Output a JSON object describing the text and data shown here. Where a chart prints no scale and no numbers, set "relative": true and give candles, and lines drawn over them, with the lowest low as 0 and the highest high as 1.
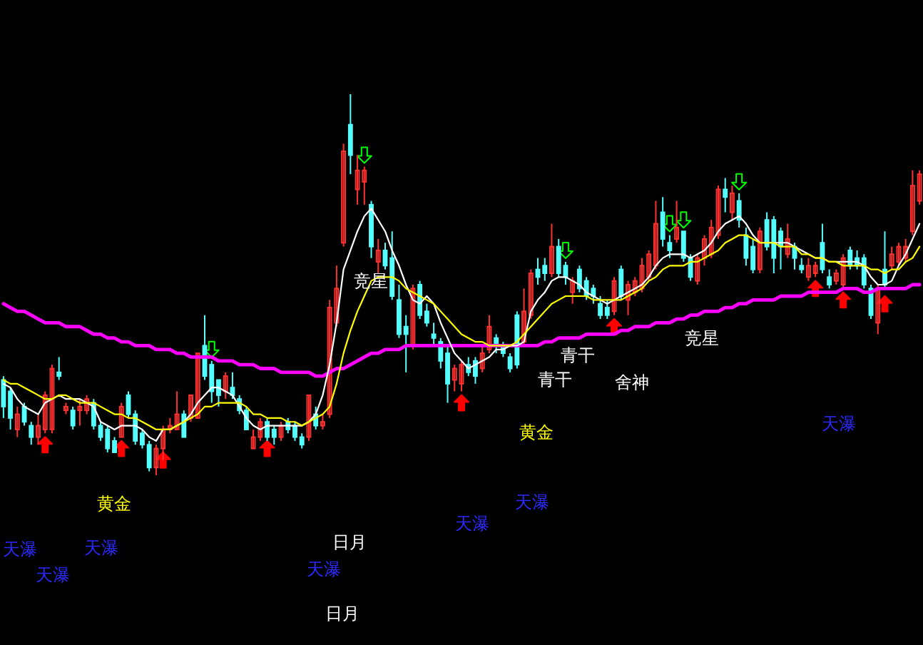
{
  "chart_data": {
    "type": "candlestick",
    "relative": true,
    "categories": [
      null,
      null,
      null,
      null,
      null,
      null,
      null,
      null,
      null,
      null,
      null,
      null,
      null,
      null,
      null,
      null,
      null,
      null,
      null,
      null,
      null,
      null,
      null,
      null,
      null,
      null,
      null,
      null,
      null,
      null,
      null,
      null,
      null,
      null,
      null,
      null,
      null,
      null,
      null,
      null,
      null,
      null,
      null,
      null,
      null,
      null,
      null,
      null,
      null,
      null,
      null,
      null,
      null,
      null,
      null,
      null,
      null,
      null,
      null,
      null,
      null,
      null,
      null,
      null,
      null,
      null,
      null,
      null,
      null,
      null,
      null,
      null,
      null,
      null,
      null,
      null,
      null,
      null,
      null,
      null,
      null,
      null,
      null,
      null,
      null,
      null,
      null,
      null,
      null,
      null,
      null,
      null,
      null,
      null,
      null,
      null,
      null,
      null,
      null,
      null,
      null,
      null,
      null,
      null,
      null,
      null,
      null,
      null,
      null,
      null,
      null,
      null,
      null,
      null,
      null,
      null,
      null,
      null,
      null,
      null,
      null,
      null,
      null,
      null,
      null,
      null,
      null,
      null,
      null,
      null,
      null,
      null,
      null
    ],
    "ohlc": [
      [
        0.25,
        0.26,
        0.15,
        0.18
      ],
      [
        0.22,
        0.23,
        0.12,
        0.15
      ],
      [
        0.12,
        0.18,
        0.1,
        0.16
      ],
      [
        0.18,
        0.19,
        0.13,
        0.14
      ],
      [
        0.13,
        0.14,
        0.08,
        0.1
      ],
      [
        0.1,
        0.16,
        0.08,
        0.13
      ],
      [
        0.12,
        0.22,
        0.11,
        0.21
      ],
      [
        0.12,
        0.29,
        0.11,
        0.28
      ],
      [
        0.27,
        0.31,
        0.25,
        0.26
      ],
      [
        0.17,
        0.19,
        0.16,
        0.18
      ],
      [
        0.17,
        0.18,
        0.12,
        0.13
      ],
      [
        0.17,
        0.2,
        0.13,
        0.18
      ],
      [
        0.17,
        0.21,
        0.16,
        0.2
      ],
      [
        0.19,
        0.2,
        0.12,
        0.13
      ],
      [
        0.13,
        0.14,
        0.09,
        0.1
      ],
      [
        0.12,
        0.13,
        0.06,
        0.07
      ],
      [
        0.09,
        0.1,
        0.06,
        0.06
      ],
      [
        0.1,
        0.19,
        0.1,
        0.18
      ],
      [
        0.21,
        0.22,
        0.15,
        0.16
      ],
      [
        0.16,
        0.17,
        0.08,
        0.09
      ],
      [
        0.11,
        0.12,
        0.07,
        0.08
      ],
      [
        0.08,
        0.09,
        0.01,
        0.02
      ],
      [
        0.02,
        0.08,
        0.0,
        0.07
      ],
      [
        0.07,
        0.13,
        0.04,
        0.12
      ],
      [
        0.12,
        0.15,
        0.11,
        0.13
      ],
      [
        0.12,
        0.22,
        0.12,
        0.16
      ],
      [
        0.16,
        0.17,
        0.1,
        0.1
      ],
      [
        0.15,
        0.21,
        0.14,
        0.21
      ],
      [
        0.15,
        0.32,
        0.15,
        0.32
      ],
      [
        0.34,
        0.42,
        0.25,
        0.26
      ],
      [
        0.29,
        0.3,
        0.19,
        0.22
      ],
      [
        0.25,
        0.25,
        0.18,
        0.21
      ],
      [
        0.22,
        0.27,
        0.2,
        0.26
      ],
      [
        0.23,
        0.27,
        0.2,
        0.21
      ],
      [
        0.2,
        0.21,
        0.16,
        0.17
      ],
      [
        0.17,
        0.18,
        0.12,
        0.12
      ],
      [
        0.07,
        0.12,
        0.07,
        0.1
      ],
      [
        0.1,
        0.15,
        0.09,
        0.14
      ],
      [
        0.14,
        0.15,
        0.09,
        0.1
      ],
      [
        0.12,
        0.13,
        0.08,
        0.1
      ],
      [
        0.1,
        0.14,
        0.09,
        0.13
      ],
      [
        0.14,
        0.15,
        0.11,
        0.12
      ],
      [
        0.13,
        0.14,
        0.09,
        0.1
      ],
      [
        0.1,
        0.11,
        0.07,
        0.08
      ],
      [
        0.1,
        0.21,
        0.09,
        0.21
      ],
      [
        0.16,
        0.18,
        0.12,
        0.13
      ],
      [
        0.13,
        0.16,
        0.12,
        0.14
      ],
      [
        0.16,
        0.46,
        0.15,
        0.44
      ],
      [
        0.4,
        0.55,
        0.39,
        0.49
      ],
      [
        0.61,
        0.87,
        0.6,
        0.85
      ],
      [
        0.92,
        1.0,
        0.79,
        0.84
      ],
      [
        0.75,
        0.84,
        0.71,
        0.8
      ],
      [
        0.77,
        0.81,
        0.71,
        0.8
      ],
      [
        0.71,
        0.72,
        0.57,
        0.6
      ],
      [
        0.56,
        0.62,
        0.53,
        0.59
      ],
      [
        0.59,
        0.61,
        0.54,
        0.55
      ],
      [
        0.57,
        0.64,
        0.46,
        0.47
      ],
      [
        0.46,
        0.5,
        0.36,
        0.37
      ],
      [
        0.39,
        0.42,
        0.27,
        0.37
      ],
      [
        0.34,
        0.5,
        0.33,
        0.49
      ],
      [
        0.5,
        0.51,
        0.41,
        0.42
      ],
      [
        0.43,
        0.45,
        0.39,
        0.4
      ],
      [
        0.37,
        0.4,
        0.34,
        0.36
      ],
      [
        0.35,
        0.36,
        0.28,
        0.3
      ],
      [
        0.32,
        0.34,
        0.19,
        0.24
      ],
      [
        0.25,
        0.29,
        0.22,
        0.28
      ],
      [
        0.24,
        0.3,
        0.22,
        0.29
      ],
      [
        0.29,
        0.31,
        0.26,
        0.27
      ],
      [
        0.3,
        0.31,
        0.24,
        0.26
      ],
      [
        0.28,
        0.34,
        0.27,
        0.32
      ],
      [
        0.33,
        0.42,
        0.32,
        0.39
      ],
      [
        0.36,
        0.37,
        0.32,
        0.34
      ],
      [
        0.34,
        0.35,
        0.31,
        0.32
      ],
      [
        0.31,
        0.32,
        0.27,
        0.28
      ],
      [
        0.42,
        0.43,
        0.28,
        0.29
      ],
      [
        0.35,
        0.49,
        0.34,
        0.43
      ],
      [
        0.42,
        0.54,
        0.41,
        0.53
      ],
      [
        0.54,
        0.57,
        0.5,
        0.52
      ],
      [
        0.55,
        0.57,
        0.51,
        0.53
      ],
      [
        0.53,
        0.66,
        0.52,
        0.6
      ],
      [
        0.6,
        0.62,
        0.52,
        0.53
      ],
      [
        0.55,
        0.56,
        0.5,
        0.52
      ],
      [
        0.48,
        0.52,
        0.45,
        0.51
      ],
      [
        0.54,
        0.55,
        0.48,
        0.49
      ],
      [
        0.51,
        0.52,
        0.46,
        0.47
      ],
      [
        0.49,
        0.5,
        0.45,
        0.47
      ],
      [
        0.45,
        0.47,
        0.41,
        0.42
      ],
      [
        0.44,
        0.46,
        0.41,
        0.42
      ],
      [
        0.43,
        0.52,
        0.42,
        0.51
      ],
      [
        0.54,
        0.55,
        0.46,
        0.47
      ],
      [
        0.46,
        0.51,
        0.42,
        0.5
      ],
      [
        0.48,
        0.52,
        0.47,
        0.51
      ],
      [
        0.49,
        0.57,
        0.48,
        0.55
      ],
      [
        0.52,
        0.59,
        0.51,
        0.58
      ],
      [
        0.55,
        0.72,
        0.54,
        0.66
      ],
      [
        0.69,
        0.73,
        0.6,
        0.62
      ],
      [
        0.61,
        0.63,
        0.57,
        0.59
      ],
      [
        0.62,
        0.72,
        0.61,
        0.65
      ],
      [
        0.64,
        0.64,
        0.56,
        0.57
      ],
      [
        0.57,
        0.58,
        0.51,
        0.52
      ],
      [
        0.51,
        0.58,
        0.5,
        0.57
      ],
      [
        0.57,
        0.63,
        0.55,
        0.62
      ],
      [
        0.58,
        0.67,
        0.57,
        0.65
      ],
      [
        0.63,
        0.76,
        0.62,
        0.75
      ],
      [
        0.75,
        0.78,
        0.69,
        0.73
      ],
      [
        0.69,
        0.76,
        0.67,
        0.74
      ],
      [
        0.72,
        0.74,
        0.65,
        0.67
      ],
      [
        0.63,
        0.65,
        0.55,
        0.57
      ],
      [
        0.6,
        0.62,
        0.53,
        0.54
      ],
      [
        0.54,
        0.65,
        0.53,
        0.64
      ],
      [
        0.67,
        0.69,
        0.59,
        0.6
      ],
      [
        0.67,
        0.68,
        0.53,
        0.57
      ],
      [
        0.64,
        0.65,
        0.54,
        0.6
      ],
      [
        0.58,
        0.66,
        0.57,
        0.62
      ],
      [
        0.6,
        0.61,
        0.54,
        0.57
      ],
      [
        0.55,
        0.57,
        0.53,
        0.54
      ],
      [
        0.52,
        0.57,
        0.51,
        0.55
      ],
      [
        0.53,
        0.56,
        0.52,
        0.55
      ],
      [
        0.61,
        0.66,
        0.53,
        0.54
      ],
      [
        0.52,
        0.54,
        0.49,
        0.5
      ],
      [
        0.51,
        0.54,
        0.5,
        0.53
      ],
      [
        0.5,
        0.58,
        0.49,
        0.57
      ],
      [
        0.59,
        0.6,
        0.54,
        0.55
      ],
      [
        0.57,
        0.59,
        0.54,
        0.55
      ],
      [
        0.57,
        0.58,
        0.49,
        0.5
      ],
      [
        0.49,
        0.5,
        0.41,
        0.42
      ],
      [
        0.4,
        0.5,
        0.37,
        0.49
      ],
      [
        0.54,
        0.64,
        0.49,
        0.5
      ],
      [
        0.55,
        0.6,
        0.54,
        0.58
      ],
      [
        0.56,
        0.61,
        0.55,
        0.6
      ],
      [
        0.57,
        0.62,
        0.56,
        0.6
      ],
      [
        0.64,
        0.8,
        0.63,
        0.76
      ],
      [
        0.72,
        0.8,
        0.71,
        0.79
      ]
    ],
    "colors": [
      "#54ffff",
      "#54ffff",
      "#ff3232",
      "#54ffff",
      "#54ffff",
      "#ff3232",
      "#ff3232",
      "#ff3232",
      "#54ffff",
      "#ff3232",
      "#54ffff",
      "#ff3232",
      "#ff3232",
      "#54ffff",
      "#54ffff",
      "#54ffff",
      "#54ffff",
      "#ff3232",
      "#54ffff",
      "#54ffff",
      "#54ffff",
      "#54ffff",
      "#ff3232",
      "#ff3232",
      "#ff3232",
      "#ff3232",
      "#54ffff",
      "#ff3232",
      "#ff3232",
      "#54ffff",
      "#54ffff",
      "#54ffff",
      "#ff3232",
      "#54ffff",
      "#54ffff",
      "#54ffff",
      "#ff3232",
      "#ff3232",
      "#54ffff",
      "#54ffff",
      "#ff3232",
      "#54ffff",
      "#54ffff",
      "#54ffff",
      "#ff3232",
      "#54ffff",
      "#ff3232",
      "#ff3232",
      "#ff3232",
      "#ff3232",
      "#54ffff",
      "#ff3232",
      "#ff3232",
      "#54ffff",
      "#ff3232",
      "#54ffff",
      "#54ffff",
      "#54ffff",
      "#54ffff",
      "#ff3232",
      "#54ffff",
      "#54ffff",
      "#54ffff",
      "#54ffff",
      "#54ffff",
      "#ff3232",
      "#ff3232",
      "#54ffff",
      "#54ffff",
      "#ff3232",
      "#ff3232",
      "#54ffff",
      "#54ffff",
      "#54ffff",
      "#54ffff",
      "#ff3232",
      "#ff3232",
      "#54ffff",
      "#54ffff",
      "#ff3232",
      "#54ffff",
      "#54ffff",
      "#ff3232",
      "#54ffff",
      "#54ffff",
      "#54ffff",
      "#54ffff",
      "#54ffff",
      "#ff3232",
      "#54ffff",
      "#ff3232",
      "#ff3232",
      "#ff3232",
      "#ff3232",
      "#ff3232",
      "#54ffff",
      "#54ffff",
      "#ff3232",
      "#54ffff",
      "#54ffff",
      "#ff3232",
      "#ff3232",
      "#ff3232",
      "#ff3232",
      "#54ffff",
      "#ff3232",
      "#54ffff",
      "#54ffff",
      "#54ffff",
      "#ff3232",
      "#54ffff",
      "#54ffff",
      "#54ffff",
      "#ff3232",
      "#54ffff",
      "#54ffff",
      "#ff3232",
      "#ff3232",
      "#54ffff",
      "#54ffff",
      "#ff3232",
      "#ff3232",
      "#54ffff",
      "#54ffff",
      "#54ffff",
      "#54ffff",
      "#ff3232",
      "#54ffff",
      "#ff3232",
      "#ff3232",
      "#ff3232",
      "#ff3232",
      "#ff3232"
    ],
    "series": [
      {
        "type": "line",
        "color": "#ff00ff",
        "values": [
          0.45,
          0.44,
          0.43,
          0.43,
          0.42,
          0.41,
          0.4,
          0.4,
          0.4,
          0.39,
          0.39,
          0.39,
          0.38,
          0.37,
          0.37,
          0.36,
          0.36,
          0.35,
          0.35,
          0.34,
          0.34,
          0.34,
          0.33,
          0.33,
          0.33,
          0.32,
          0.32,
          0.31,
          0.31,
          0.31,
          0.31,
          0.3,
          0.3,
          0.3,
          0.29,
          0.29,
          0.29,
          0.28,
          0.28,
          0.28,
          0.27,
          0.27,
          0.27,
          0.27,
          0.27,
          0.26,
          0.26,
          0.27,
          0.28,
          0.28,
          0.29,
          0.3,
          0.31,
          0.32,
          0.32,
          0.33,
          0.33,
          0.33,
          0.34,
          0.34,
          0.34,
          0.34,
          0.34,
          0.34,
          0.34,
          0.34,
          0.34,
          0.34,
          0.34,
          0.34,
          0.34,
          0.34,
          0.34,
          0.34,
          0.34,
          0.34,
          0.34,
          0.34,
          0.35,
          0.35,
          0.36,
          0.36,
          0.36,
          0.36,
          0.37,
          0.37,
          0.37,
          0.37,
          0.37,
          0.38,
          0.38,
          0.39,
          0.39,
          0.39,
          0.4,
          0.4,
          0.4,
          0.41,
          0.41,
          0.42,
          0.42,
          0.43,
          0.43,
          0.43,
          0.44,
          0.44,
          0.45,
          0.45,
          0.46,
          0.46,
          0.46,
          0.46,
          0.47,
          0.47,
          0.47,
          0.47,
          0.48,
          0.48,
          0.48,
          0.48,
          0.48,
          0.49,
          0.49,
          0.49,
          0.48,
          0.48,
          0.49,
          0.49,
          0.49,
          0.49,
          0.49,
          0.5,
          0.5
        ]
      },
      {
        "type": "line",
        "color": "#ffffff",
        "values": [
          0.24,
          0.23,
          0.2,
          0.18,
          0.17,
          0.16,
          0.19,
          0.2,
          0.21,
          0.2,
          0.2,
          0.2,
          0.19,
          0.18,
          0.14,
          0.13,
          0.12,
          0.13,
          0.13,
          0.13,
          0.12,
          0.1,
          0.09,
          0.12,
          0.12,
          0.13,
          0.14,
          0.16,
          0.19,
          0.21,
          0.23,
          0.23,
          0.22,
          0.21,
          0.18,
          0.15,
          0.13,
          0.12,
          0.13,
          0.13,
          0.13,
          0.13,
          0.13,
          0.13,
          0.14,
          0.16,
          0.21,
          0.29,
          0.4,
          0.54,
          0.59,
          0.64,
          0.68,
          0.7,
          0.67,
          0.64,
          0.59,
          0.55,
          0.5,
          0.46,
          0.45,
          0.47,
          0.45,
          0.4,
          0.36,
          0.32,
          0.3,
          0.28,
          0.29,
          0.3,
          0.31,
          0.33,
          0.33,
          0.34,
          0.34,
          0.35,
          0.43,
          0.46,
          0.48,
          0.51,
          0.52,
          0.52,
          0.51,
          0.5,
          0.48,
          0.47,
          0.46,
          0.45,
          0.46,
          0.47,
          0.48,
          0.49,
          0.5,
          0.52,
          0.55,
          0.57,
          0.58,
          0.58,
          0.58,
          0.57,
          0.58,
          0.59,
          0.61,
          0.64,
          0.66,
          0.67,
          0.68,
          0.66,
          0.63,
          0.61,
          0.61,
          0.61,
          0.61,
          0.61,
          0.6,
          0.59,
          0.58,
          0.57,
          0.57,
          0.56,
          0.56,
          0.56,
          0.56,
          0.56,
          0.55,
          0.52,
          0.5,
          0.5,
          0.51,
          0.55,
          0.58,
          0.62,
          0.66
        ]
      },
      {
        "type": "line",
        "color": "#ffff00",
        "values": [
          0.25,
          0.24,
          0.24,
          0.23,
          0.22,
          0.21,
          0.2,
          0.2,
          0.21,
          0.21,
          0.2,
          0.19,
          0.19,
          0.19,
          0.18,
          0.17,
          0.16,
          0.16,
          0.15,
          0.15,
          0.14,
          0.13,
          0.12,
          0.12,
          0.12,
          0.13,
          0.14,
          0.15,
          0.16,
          0.18,
          0.18,
          0.19,
          0.19,
          0.19,
          0.19,
          0.18,
          0.16,
          0.16,
          0.15,
          0.15,
          0.15,
          0.14,
          0.14,
          0.13,
          0.14,
          0.15,
          0.16,
          0.18,
          0.24,
          0.32,
          0.38,
          0.43,
          0.47,
          0.51,
          0.52,
          0.52,
          0.52,
          0.51,
          0.49,
          0.48,
          0.47,
          0.46,
          0.45,
          0.43,
          0.41,
          0.39,
          0.37,
          0.36,
          0.35,
          0.35,
          0.34,
          0.34,
          0.34,
          0.34,
          0.35,
          0.37,
          0.39,
          0.41,
          0.43,
          0.45,
          0.46,
          0.47,
          0.47,
          0.47,
          0.47,
          0.46,
          0.46,
          0.46,
          0.46,
          0.46,
          0.47,
          0.48,
          0.49,
          0.51,
          0.52,
          0.54,
          0.55,
          0.55,
          0.55,
          0.56,
          0.56,
          0.57,
          0.58,
          0.59,
          0.61,
          0.62,
          0.63,
          0.63,
          0.62,
          0.61,
          0.61,
          0.61,
          0.6,
          0.6,
          0.6,
          0.58,
          0.58,
          0.57,
          0.57,
          0.56,
          0.56,
          0.55,
          0.55,
          0.55,
          0.55,
          0.54,
          0.54,
          0.53,
          0.54,
          0.54,
          0.56,
          0.57,
          0.6
        ]
      },
      {
        "type": "scatter",
        "color": "#ff0000",
        "values": [
          null,
          null,
          null,
          null,
          null,
          null,
          0.08,
          null,
          null,
          null,
          null,
          null,
          null,
          null,
          null,
          null,
          null,
          0.07,
          null,
          null,
          null,
          null,
          null,
          0.04,
          null,
          null,
          null,
          null,
          null,
          null,
          null,
          null,
          null,
          null,
          null,
          null,
          null,
          null,
          0.07,
          null,
          null,
          null,
          null,
          null,
          null,
          null,
          null,
          null,
          null,
          null,
          null,
          null,
          null,
          null,
          null,
          null,
          null,
          null,
          null,
          null,
          null,
          null,
          null,
          null,
          null,
          null,
          0.19,
          null,
          null,
          null,
          null,
          null,
          null,
          null,
          null,
          null,
          null,
          null,
          null,
          null,
          null,
          null,
          null,
          null,
          null,
          null,
          null,
          null,
          0.39,
          null,
          null,
          null,
          null,
          null,
          null,
          null,
          null,
          null,
          null,
          null,
          null,
          null,
          null,
          null,
          null,
          null,
          null,
          null,
          null,
          null,
          null,
          null,
          null,
          null,
          null,
          null,
          null,
          0.49,
          null,
          null,
          null,
          0.46,
          null,
          null,
          null,
          null,
          null,
          0.45,
          null,
          null,
          null,
          null,
          null
        ]
      },
      {
        "type": "scatter",
        "color": "#00ff00",
        "values": [
          null,
          null,
          null,
          null,
          null,
          null,
          null,
          null,
          null,
          null,
          null,
          null,
          null,
          null,
          null,
          null,
          null,
          null,
          null,
          null,
          null,
          null,
          null,
          null,
          null,
          null,
          null,
          null,
          null,
          null,
          0.33,
          null,
          null,
          null,
          null,
          null,
          null,
          null,
          null,
          null,
          null,
          null,
          null,
          null,
          null,
          null,
          null,
          null,
          null,
          null,
          null,
          null,
          0.84,
          null,
          null,
          null,
          null,
          null,
          null,
          null,
          null,
          null,
          null,
          null,
          null,
          null,
          null,
          null,
          null,
          null,
          null,
          null,
          null,
          null,
          null,
          null,
          null,
          null,
          null,
          null,
          null,
          0.59,
          null,
          null,
          null,
          null,
          null,
          null,
          null,
          null,
          null,
          null,
          null,
          null,
          null,
          null,
          0.66,
          null,
          0.67,
          null,
          null,
          null,
          null,
          null,
          null,
          null,
          0.77,
          null,
          null,
          null,
          null,
          null,
          null,
          null,
          null,
          null,
          null,
          null,
          null,
          null,
          null,
          null,
          null,
          null,
          null,
          null,
          null,
          null,
          null,
          null,
          null,
          null,
          null
        ]
      }
    ],
    "annotations": [
      "竞星",
      "竞星",
      "青干",
      "青干",
      "舍神",
      "天瀑",
      "黄金",
      "天瀑",
      "黄金",
      "天瀑",
      "日月",
      "天瀑",
      "天瀑",
      "天瀑",
      "天瀑",
      "日月"
    ]
  }
}
